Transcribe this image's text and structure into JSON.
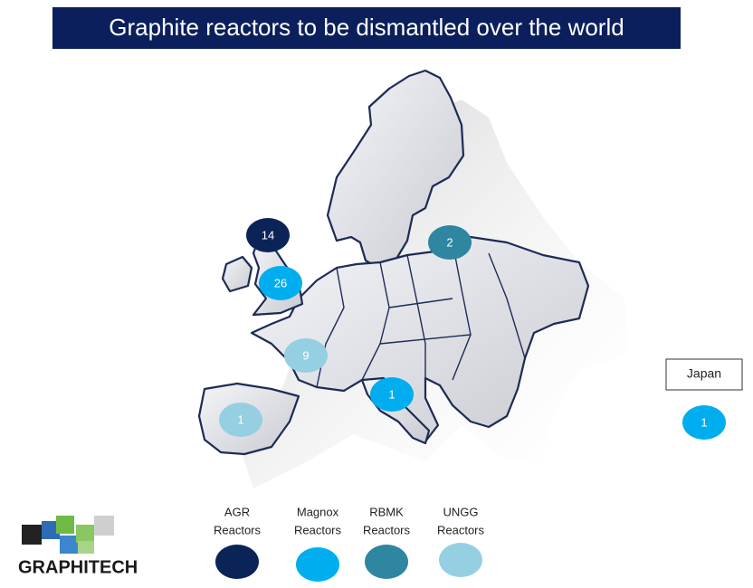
{
  "title": "Graphite reactors to be dismantled over the world",
  "legend": [
    {
      "lines": [
        "AGR",
        "Reactors"
      ],
      "color": "#0b2458"
    },
    {
      "lines": [
        "Magnox",
        "Reactors"
      ],
      "color": "#00aeef"
    },
    {
      "lines": [
        "RBMK",
        "Reactors"
      ],
      "color": "#2e86a0"
    },
    {
      "lines": [
        "UNGG",
        "Reactors"
      ],
      "color": "#95cfe2"
    }
  ],
  "markers": [
    {
      "count": 14,
      "color": "#0b2458"
    },
    {
      "count": 26,
      "color": "#00aeef"
    },
    {
      "count": 2,
      "color": "#2e86a0"
    },
    {
      "count": 9,
      "color": "#95cfe2"
    },
    {
      "count": 1,
      "color": "#00aeef"
    },
    {
      "count": 1,
      "color": "#95cfe2"
    }
  ],
  "japan": {
    "label": "Japan",
    "count": 1,
    "color": "#00aeef"
  },
  "logo": "GRAPHITECH"
}
